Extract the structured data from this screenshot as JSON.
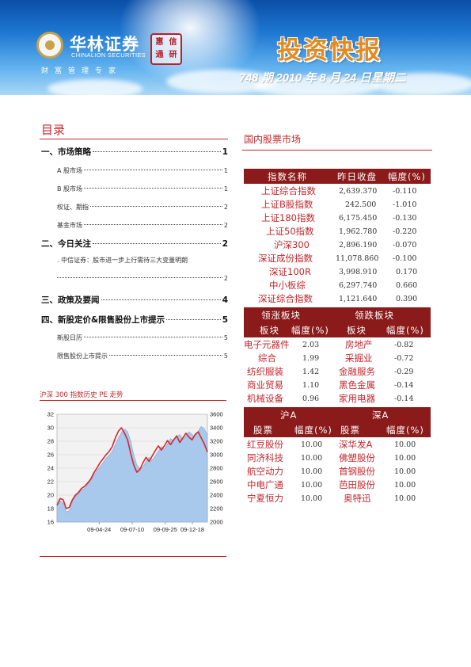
{
  "header": {
    "brand_cn": "华林证券",
    "brand_en": "CHINALION SECURITIES",
    "slogan": "财富管理专家",
    "stamp_chars": [
      "惠",
      "信",
      "通",
      "研"
    ],
    "title": "投资快报",
    "issue_line": "748 期  2010 年 8 月 24 日星期二"
  },
  "toc": {
    "title": "目录",
    "entries": [
      {
        "text": "一、市场策略",
        "page": "1",
        "level": 1
      },
      {
        "text": "A 股市场",
        "page": "1",
        "level": 2
      },
      {
        "text": "B 股市场",
        "page": "1",
        "level": 2
      },
      {
        "text": "权证、期指",
        "page": "2",
        "level": 2
      },
      {
        "text": "基金市场",
        "page": "2",
        "level": 2
      },
      {
        "text": "二、今日关注",
        "page": "2",
        "level": 1
      },
      {
        "text": "三、政策及要闻",
        "page": "4",
        "level": 1
      },
      {
        "text": "四、新股定价&限售股份上市提示",
        "page": "5",
        "level": 1
      },
      {
        "text": "新股日历",
        "page": "5",
        "level": 2
      },
      {
        "text": "限售股份上市提示",
        "page": "5",
        "level": 2
      }
    ],
    "note": ". 中信证券：股市进一步上行需待三大变量明朗",
    "note_page": "2"
  },
  "pe_chart": {
    "title": "沪深 300 指数历史 PE 走势"
  },
  "chart_data": {
    "type": "line",
    "title": "",
    "x_ticks": [
      "09-04-24",
      "09-07-10",
      "09-09-25",
      "09-12-18"
    ],
    "y_left_ticks": [
      "16",
      "18",
      "20",
      "22",
      "24",
      "26",
      "28",
      "30",
      "32"
    ],
    "y_right_ticks": [
      "2000",
      "2200",
      "2400",
      "2600",
      "2800",
      "3000",
      "3200",
      "3400",
      "3600"
    ],
    "ylim_left": [
      16,
      32
    ],
    "ylim_right": [
      2000,
      3600
    ],
    "series": [
      {
        "axis": "right",
        "style": "area",
        "color": "#a8c8ec",
        "values": [
          2240,
          2320,
          2280,
          2150,
          2170,
          2300,
          2380,
          2420,
          2480,
          2500,
          2560,
          2620,
          2700,
          2760,
          2820,
          2880,
          2950,
          2990,
          3050,
          3150,
          3250,
          3330,
          3380,
          3340,
          3200,
          3000,
          2850,
          2780,
          2820,
          2900,
          2960,
          2920,
          2980,
          3050,
          3120,
          3080,
          3160,
          3240,
          3200,
          3260,
          3300,
          3220,
          3280,
          3340,
          3300,
          3260,
          3350,
          3420,
          3380,
          3300
        ]
      },
      {
        "axis": "left",
        "style": "line",
        "color": "#d9262c",
        "values": [
          18.5,
          19.5,
          19.3,
          18.0,
          18.2,
          19.3,
          20.0,
          20.4,
          21.0,
          21.3,
          21.8,
          22.4,
          23.3,
          24.0,
          24.8,
          25.4,
          26.0,
          26.5,
          27.2,
          28.5,
          29.5,
          30.0,
          29.2,
          28.2,
          26.2,
          24.5,
          23.4,
          23.8,
          24.8,
          25.6,
          25.0,
          25.8,
          26.6,
          27.3,
          26.7,
          27.3,
          28.1,
          27.5,
          28.2,
          28.8,
          27.8,
          28.5,
          29.2,
          28.6,
          28.2,
          29.0,
          29.4,
          28.5,
          27.6,
          26.4
        ]
      }
    ]
  },
  "market": {
    "title": "国内股票市场",
    "header": {
      "name": "指数名称",
      "close": "昨日收盘",
      "change": "幅度(%)"
    },
    "rows": [
      {
        "name": "上证综合指数",
        "close": "2,639.370",
        "change": "-0.110"
      },
      {
        "name": "上证B股指数",
        "close": "242.500",
        "change": "-1.010"
      },
      {
        "name": "上证180指数",
        "close": "6,175.450",
        "change": "-0.130"
      },
      {
        "name": "上证50指数",
        "close": "1,962.780",
        "change": "-0.220"
      },
      {
        "name": "沪深300",
        "close": "2,896.190",
        "change": "-0.070"
      },
      {
        "name": "深证成份指数",
        "close": "11,078.860",
        "change": "-0.100"
      },
      {
        "name": "深证100R",
        "close": "3,998.910",
        "change": "0.170"
      },
      {
        "name": "中小板综",
        "close": "6,297.740",
        "change": "0.660"
      },
      {
        "name": "深证综合指数",
        "close": "1,121.640",
        "change": "0.390"
      }
    ]
  },
  "sectors": {
    "rising_title": "领涨板块",
    "falling_title": "领跌板块",
    "col_sector": "板块",
    "col_change": "幅度(%)",
    "rows": [
      {
        "up_name": "电子元器件",
        "up_change": "2.03",
        "down_name": "房地产",
        "down_change": "-0.82"
      },
      {
        "up_name": "综合",
        "up_change": "1.99",
        "down_name": "采掘业",
        "down_change": "-0.72"
      },
      {
        "up_name": "纺织服装",
        "up_change": "1.42",
        "down_name": "金融服务",
        "down_change": "-0.29"
      },
      {
        "up_name": "商业贸易",
        "up_change": "1.10",
        "down_name": "黑色金属",
        "down_change": "-0.14"
      },
      {
        "up_name": "机械设备",
        "up_change": "0.96",
        "down_name": "家用电器",
        "down_change": "-0.14"
      }
    ]
  },
  "stocks": {
    "sh_title": "沪A",
    "sz_title": "深A",
    "col_stock": "股票",
    "col_change": "幅度(%)",
    "rows": [
      {
        "sh_name": "红豆股份",
        "sh_change": "10.00",
        "sz_name": "深华发A",
        "sz_change": "10.00"
      },
      {
        "sh_name": "同济科技",
        "sh_change": "10.00",
        "sz_name": "佛塑股份",
        "sz_change": "10.00"
      },
      {
        "sh_name": "航空动力",
        "sh_change": "10.00",
        "sz_name": "首钢股份",
        "sz_change": "10.00"
      },
      {
        "sh_name": "中电广通",
        "sh_change": "10.00",
        "sz_name": "芭田股份",
        "sz_change": "10.00"
      },
      {
        "sh_name": "宁夏恒力",
        "sh_change": "10.00",
        "sz_name": "奥特迅",
        "sz_change": "10.00"
      }
    ]
  }
}
